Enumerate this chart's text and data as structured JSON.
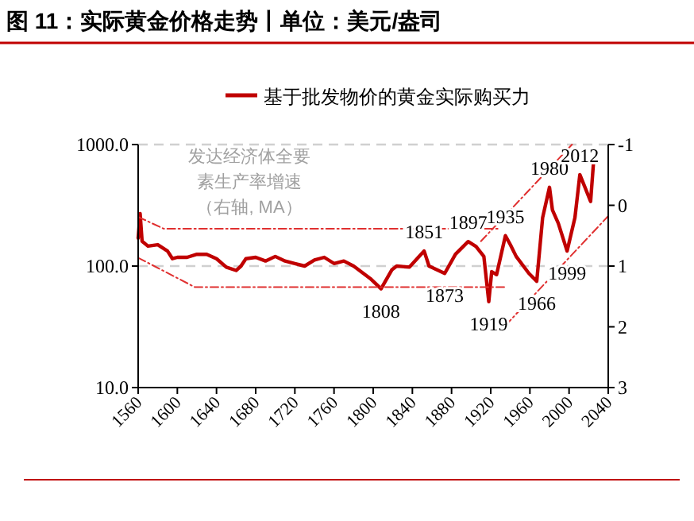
{
  "chart_data": {
    "type": "line",
    "title": "图 11：实际黄金价格走势丨单位：美元/盎司",
    "xlim": [
      1560,
      2040
    ],
    "xticks": [
      1560,
      1600,
      1640,
      1680,
      1720,
      1760,
      1800,
      1840,
      1880,
      1920,
      1960,
      2000,
      2040
    ],
    "ylim": [
      10,
      1000
    ],
    "yticks": [
      {
        "value": 10,
        "label": "10.0"
      },
      {
        "value": 100,
        "label": "100.0"
      },
      {
        "value": 1000,
        "label": "1000.0"
      }
    ],
    "log": "y",
    "y2lim": [
      3,
      -1
    ],
    "y2ticks": [
      -1,
      0,
      1,
      2,
      3
    ],
    "grid": "y",
    "legend": "top",
    "series": [
      {
        "name": "基于批发物价的黄金实际购买力",
        "color": "#c00000",
        "line_style": "solid",
        "x": [
          1560,
          1562,
          1564,
          1570,
          1580,
          1590,
          1595,
          1600,
          1610,
          1620,
          1630,
          1640,
          1650,
          1660,
          1665,
          1670,
          1680,
          1690,
          1700,
          1710,
          1720,
          1730,
          1740,
          1750,
          1760,
          1770,
          1780,
          1797,
          1808,
          1819,
          1824,
          1837,
          1852,
          1857,
          1873,
          1884,
          1897,
          1905,
          1913,
          1918,
          1921,
          1926,
          1935,
          1940,
          1946,
          1959,
          1967,
          1973,
          1980,
          1983,
          1989,
          1998,
          2006,
          2011,
          2016,
          2022,
          2025
        ],
        "values": [
          170,
          270,
          160,
          146,
          150,
          133,
          115,
          118,
          118,
          125,
          125,
          115,
          98,
          92,
          100,
          115,
          118,
          110,
          120,
          110,
          105,
          100,
          112,
          118,
          105,
          110,
          100,
          79,
          65,
          93,
          100,
          98,
          133,
          100,
          87,
          125,
          159,
          145,
          120,
          51,
          90,
          85,
          178,
          150,
          120,
          87,
          75,
          250,
          445,
          290,
          225,
          133,
          250,
          565,
          450,
          340,
          720
        ]
      },
      {
        "color": "#e03030",
        "line_style": "dashed",
        "x": [
          1560,
          1586,
          1930
        ],
        "values": [
          254,
          203,
          203
        ]
      },
      {
        "color": "#e03030",
        "line_style": "dashed",
        "x": [
          1560,
          1618,
          1936
        ],
        "values": [
          117,
          67,
          67
        ]
      },
      {
        "color": "#e03030",
        "line_style": "dashed",
        "x": [
          1910,
          2003
        ],
        "values": [
          160,
          1000
        ]
      },
      {
        "color": "#e03030",
        "line_style": "dashed",
        "x": [
          1935,
          2040
        ],
        "values": [
          32.4,
          258
        ]
      }
    ],
    "annotations": [
      "发达经济体全要素生产率增速（右轴, MA）",
      {
        "text": "1851",
        "x": 1852,
        "y": 133
      },
      {
        "text": "1897",
        "x": 1897,
        "y": 159
      },
      {
        "text": "1935",
        "x": 1935,
        "y": 178
      },
      {
        "text": "1980",
        "x": 1980,
        "y": 445
      },
      {
        "text": "2012",
        "x": 2011,
        "y": 565
      },
      {
        "text": "1873",
        "x": 1873,
        "y": 87
      },
      {
        "text": "1808",
        "x": 1808,
        "y": 65
      },
      {
        "text": "1999",
        "x": 1998,
        "y": 133
      },
      {
        "text": "1966",
        "x": 1967,
        "y": 75
      },
      {
        "text": "1919",
        "x": 1918,
        "y": 51
      }
    ]
  }
}
